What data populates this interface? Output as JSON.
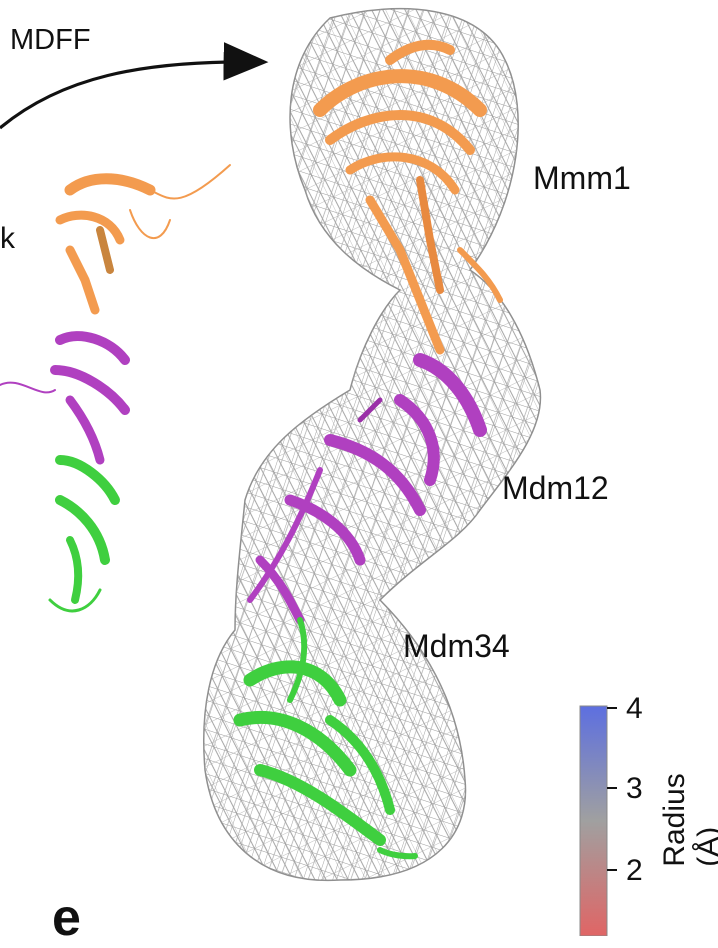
{
  "arrow_label": "MDFF",
  "cut_text": "k",
  "domains": [
    {
      "name": "Mmm1",
      "color": "#f39b4f"
    },
    {
      "name": "Mdm12",
      "color": "#b040c0"
    },
    {
      "name": "Mdm34",
      "color": "#3fcf3f"
    }
  ],
  "mesh_color": "#9a9a9a",
  "colorbar": {
    "title": "Radius (Å)",
    "ticks": [
      "4",
      "3",
      "2"
    ],
    "gradient": [
      "#5d6fe0",
      "#9c9c9c",
      "#e06565"
    ]
  },
  "panel_letter": "e"
}
